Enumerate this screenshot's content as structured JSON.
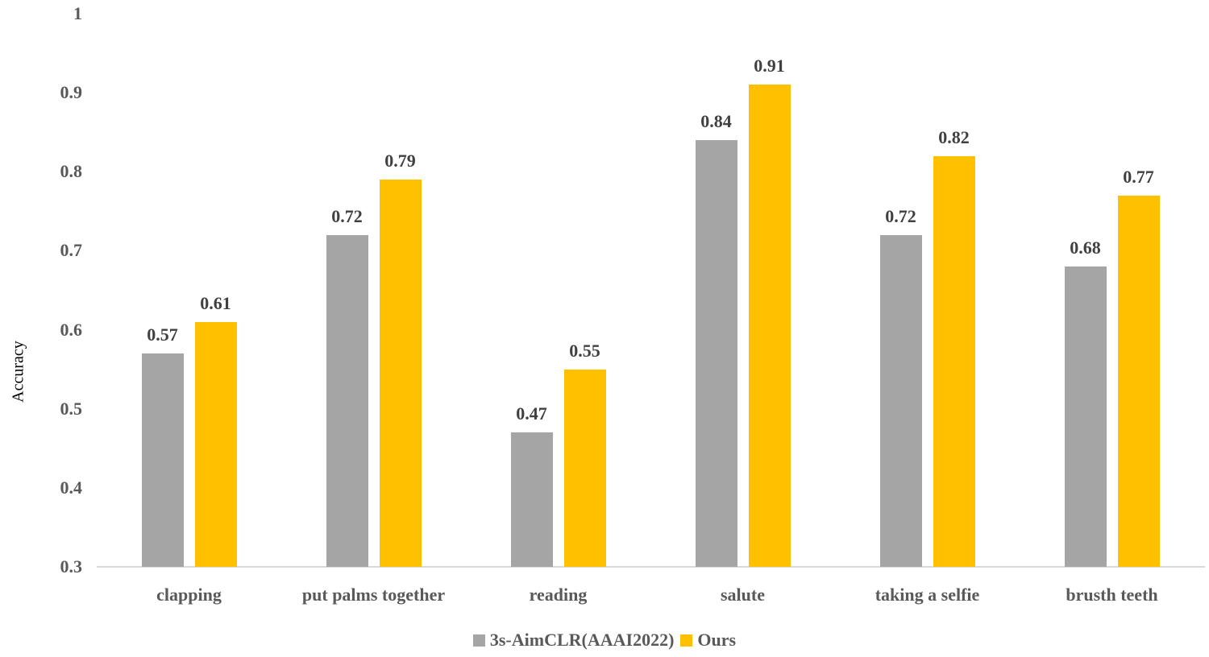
{
  "chart_data": {
    "type": "bar",
    "title": "",
    "xlabel": "",
    "ylabel": "Accuracy",
    "ylim": [
      0.3,
      1.0
    ],
    "yticks": [
      "1",
      "0.9",
      "0.8",
      "0.7",
      "0.6",
      "0.5",
      "0.4",
      "0.3"
    ],
    "grid": false,
    "legend_position": "bottom",
    "categories": [
      "clapping",
      "put palms together",
      "reading",
      "salute",
      "taking a selfie",
      "brusth teeth"
    ],
    "series": [
      {
        "name": "3s-AimCLR(AAAI2022)",
        "color": "#a5a5a5",
        "values": [
          0.57,
          0.72,
          0.47,
          0.84,
          0.72,
          0.68
        ]
      },
      {
        "name": "Ours",
        "color": "#ffc000",
        "values": [
          0.61,
          0.79,
          0.55,
          0.91,
          0.82,
          0.77
        ]
      }
    ]
  }
}
